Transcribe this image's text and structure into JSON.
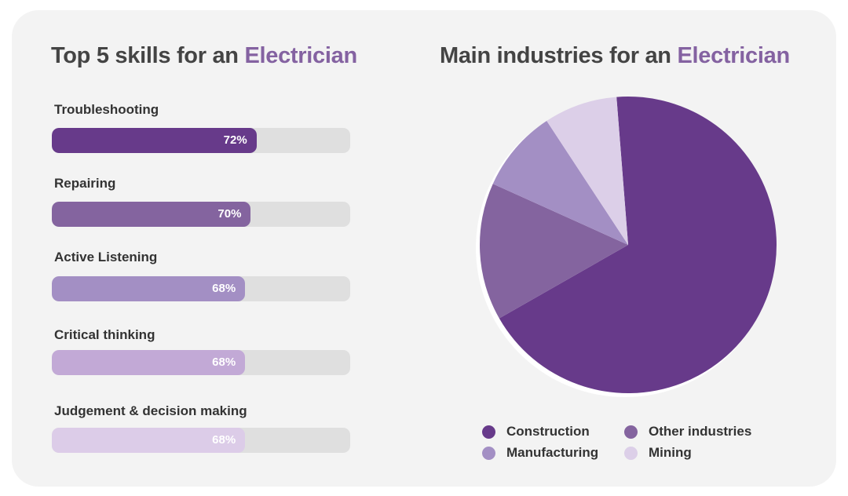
{
  "skills_panel": {
    "title_prefix": "Top 5 skills for an ",
    "title_accent": "Electrician",
    "skills": [
      {
        "label": "Troubleshooting",
        "percent": 72,
        "percent_label": "72%",
        "color": "#673a8a"
      },
      {
        "label": "Repairing",
        "percent": 70,
        "percent_label": "70%",
        "color": "#84649f"
      },
      {
        "label": "Active Listening",
        "percent": 68,
        "percent_label": "68%",
        "color": "#a38fc4"
      },
      {
        "label": "Critical thinking",
        "percent": 68,
        "percent_label": "68%",
        "color": "#c2a9d6"
      },
      {
        "label": "Judgement & decision making",
        "percent": 68,
        "percent_label": "68%",
        "color": "#dccce8"
      }
    ]
  },
  "industries_panel": {
    "title_prefix": "Main industries for an ",
    "title_accent": "Electrician"
  },
  "accent_color": "#8462a1",
  "chart_data": [
    {
      "type": "bar",
      "orientation": "horizontal",
      "title": "Top 5 skills for an Electrician",
      "categories": [
        "Troubleshooting",
        "Repairing",
        "Active Listening",
        "Critical thinking",
        "Judgement & decision making"
      ],
      "values": [
        72,
        70,
        68,
        68,
        68
      ],
      "unit": "%",
      "xlim": [
        0,
        100
      ]
    },
    {
      "type": "pie",
      "title": "Main industries for an Electrician",
      "categories": [
        "Construction",
        "Other industries",
        "Manufacturing",
        "Mining"
      ],
      "values": [
        68,
        15,
        9,
        8
      ],
      "colors": [
        "#673a8a",
        "#84649f",
        "#a38fc4",
        "#dccfe8"
      ],
      "legend_position": "bottom",
      "legend": [
        "Construction",
        "Other industries",
        "Manufacturing",
        "Mining"
      ]
    }
  ]
}
